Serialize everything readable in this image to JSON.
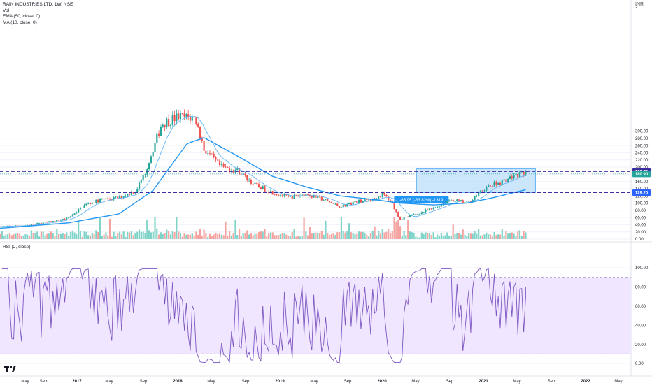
{
  "legend": {
    "title": "RAIN INDUSTRIES LTD, 1W, NSE",
    "vol": "Vol",
    "ema": "EMA (50, close, 0)",
    "ma": "MA (10, close, 0)",
    "rsi": "RSI (2, close)"
  },
  "currency_label": "INR",
  "colors": {
    "up": "#26a69a",
    "down": "#ef5350",
    "vol_up": "#7fd3c8",
    "vol_down": "#f5a3a0",
    "ema": "#2196f3",
    "ma": "#64b5f6",
    "level_line": "#3c2ea0",
    "range_box": "#bbdefb",
    "range_border": "#64b5f6",
    "rsi_line": "#7e57c2",
    "rsi_band": "#f0e6ff"
  },
  "chart_data": {
    "type": "candlestick",
    "title": "RAIN INDUSTRIES LTD, 1W, NSE",
    "price_axis": {
      "ticks": [
        "300.00",
        "280.00",
        "260.00",
        "240.00",
        "220.00",
        "200.00",
        "180.00",
        "160.00",
        "140.00",
        "120.00",
        "100.00",
        "80.00",
        "60.00",
        "40.00",
        "20.00",
        "0.00"
      ],
      "partial_tick": "2"
    },
    "time_axis_labels": [
      "May",
      "Sep",
      "2017",
      "May",
      "Sep",
      "2018",
      "May",
      "Sep",
      "2019",
      "May",
      "Sep",
      "2020",
      "May",
      "Sep",
      "2021",
      "May",
      "Sep",
      "2022",
      "May"
    ],
    "price_labels": [
      {
        "value": "187.70",
        "style": "dark"
      },
      {
        "value": "180.90",
        "style": "teal"
      },
      {
        "value": "129.20",
        "style": "blue"
      }
    ],
    "horizontal_levels": [
      187.7,
      129.2
    ],
    "range_measure": {
      "label": "-65.95 (-33.82%) -1319",
      "price_low": 129.2,
      "price_high": 195,
      "start": "2020-05",
      "end": "2021-07"
    },
    "price_path": [
      [
        "2016-04",
        35
      ],
      [
        "2016-07",
        38
      ],
      [
        "2016-10",
        48
      ],
      [
        "2016-12",
        58
      ],
      [
        "2017-02",
        95
      ],
      [
        "2017-04",
        110
      ],
      [
        "2017-06",
        115
      ],
      [
        "2017-08",
        135
      ],
      [
        "2017-09",
        180
      ],
      [
        "2017-10",
        250
      ],
      [
        "2017-11",
        320
      ],
      [
        "2017-12",
        330
      ],
      [
        "2018-01",
        340
      ],
      [
        "2018-03",
        335
      ],
      [
        "2018-04",
        250
      ],
      [
        "2018-06",
        200
      ],
      [
        "2018-08",
        190
      ],
      [
        "2018-10",
        150
      ],
      [
        "2018-12",
        130
      ],
      [
        "2019-02",
        115
      ],
      [
        "2019-04",
        125
      ],
      [
        "2019-06",
        110
      ],
      [
        "2019-08",
        90
      ],
      [
        "2019-10",
        105
      ],
      [
        "2019-12",
        110
      ],
      [
        "2020-01",
        125
      ],
      [
        "2020-02",
        105
      ],
      [
        "2020-03",
        55
      ],
      [
        "2020-05",
        70
      ],
      [
        "2020-07",
        85
      ],
      [
        "2020-09",
        110
      ],
      [
        "2020-11",
        100
      ],
      [
        "2021-01",
        140
      ],
      [
        "2021-03",
        160
      ],
      [
        "2021-05",
        180
      ],
      [
        "2021-06",
        187
      ]
    ],
    "ema50_path": [
      [
        "2016-04",
        30
      ],
      [
        "2016-12",
        45
      ],
      [
        "2017-06",
        70
      ],
      [
        "2017-10",
        135
      ],
      [
        "2018-02",
        265
      ],
      [
        "2018-04",
        282
      ],
      [
        "2018-08",
        230
      ],
      [
        "2018-12",
        175
      ],
      [
        "2019-04",
        145
      ],
      [
        "2019-08",
        120
      ],
      [
        "2019-12",
        110
      ],
      [
        "2020-03",
        100
      ],
      [
        "2020-07",
        95
      ],
      [
        "2020-11",
        100
      ],
      [
        "2021-02",
        115
      ],
      [
        "2021-06",
        138
      ]
    ],
    "rsi": {
      "ticks": [
        "100.00",
        "80.00",
        "60.00",
        "40.00",
        "20.00",
        "0.00"
      ],
      "upper_band": 90,
      "lower_band": 10,
      "last_value": 80
    }
  }
}
